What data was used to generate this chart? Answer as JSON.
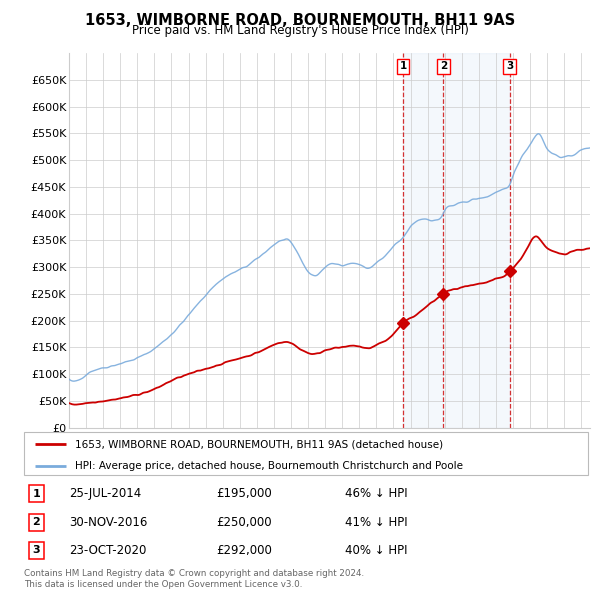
{
  "title": "1653, WIMBORNE ROAD, BOURNEMOUTH, BH11 9AS",
  "subtitle": "Price paid vs. HM Land Registry's House Price Index (HPI)",
  "hpi_color": "#7aabdc",
  "hpi_fill_color": "#ddeeff",
  "price_color": "#cc0000",
  "dashed_color": "#cc0000",
  "background_color": "#ffffff",
  "grid_color": "#cccccc",
  "legend_label_price": "1653, WIMBORNE ROAD, BOURNEMOUTH, BH11 9AS (detached house)",
  "legend_label_hpi": "HPI: Average price, detached house, Bournemouth Christchurch and Poole",
  "sales": [
    {
      "num": 1,
      "date": "25-JUL-2014",
      "price": 195000,
      "pct": "46%",
      "x_year": 2014.56
    },
    {
      "num": 2,
      "date": "30-NOV-2016",
      "price": 250000,
      "pct": "41%",
      "x_year": 2016.92
    },
    {
      "num": 3,
      "date": "23-OCT-2020",
      "price": 292000,
      "pct": "40%",
      "x_year": 2020.81
    }
  ],
  "footnote": "Contains HM Land Registry data © Crown copyright and database right 2024.\nThis data is licensed under the Open Government Licence v3.0.",
  "xmin": 1995.0,
  "xmax": 2025.5,
  "ylim": [
    0,
    700000
  ],
  "yticks": [
    0,
    50000,
    100000,
    150000,
    200000,
    250000,
    300000,
    350000,
    400000,
    450000,
    500000,
    550000,
    600000,
    650000
  ]
}
